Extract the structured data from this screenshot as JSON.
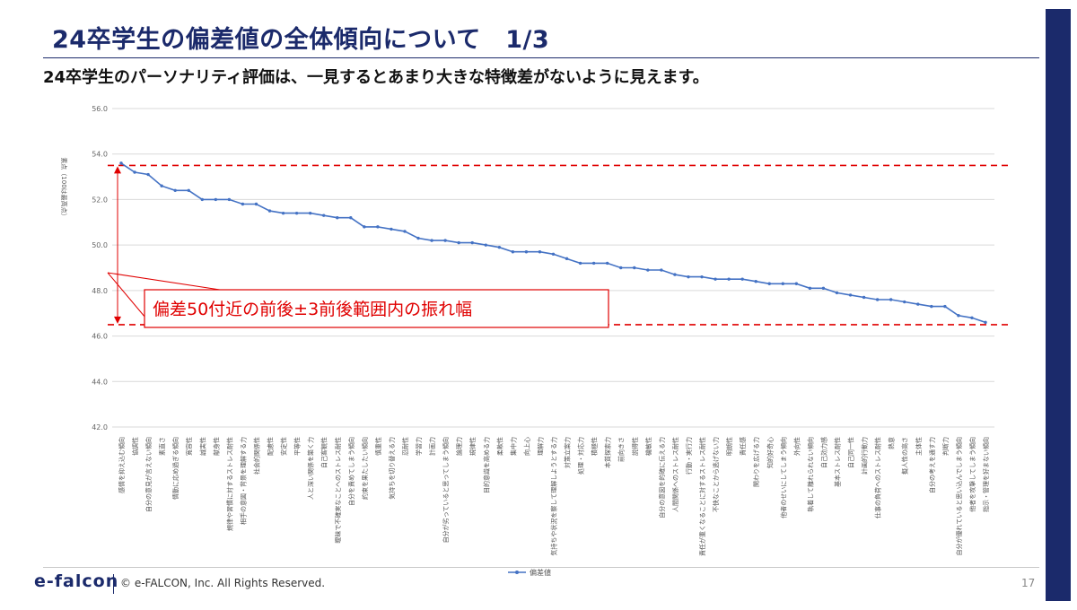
{
  "slide": {
    "title": "24卒学生の偏差値の全体傾向について　1/3",
    "subtitle": "24卒学生のパーソナリティ評価は、一見するとあまり大きな特徴差がないように見えます。",
    "footer": {
      "logo": "e-falcon",
      "copyright": "© e-FALCON, Inc. All Rights Reserved.",
      "page": "17"
    },
    "colors": {
      "navy": "#1b2a6b",
      "line": "#4472c4",
      "annotation": "#e00000"
    }
  },
  "chart_data": {
    "type": "line",
    "ylabel": "素点（100は最高点）",
    "ylim": [
      42,
      56
    ],
    "yticks": [
      "42.0",
      "44.0",
      "46.0",
      "48.0",
      "50.0",
      "52.0",
      "54.0",
      "56.0"
    ],
    "grid": true,
    "legend": "bottom",
    "categories": [
      "感情を抑え込む傾向",
      "協調性",
      "自分の意見が言えない傾向",
      "素直さ",
      "情動に応め過ぎる傾向",
      "寛容性",
      "誠実性",
      "献身性",
      "規律や習慣に対するストレス耐性",
      "相手の意図・背景を理解する力",
      "社会的関係性",
      "配慮性",
      "安定性",
      "平等性",
      "人と深い関係を築く力",
      "自己客観性",
      "曖昧で不確実なことへのストレス耐性",
      "自分を責めてしまう傾向",
      "約束を果たしたい傾向",
      "慎重性",
      "気持ちを切り替える力",
      "忍耐性",
      "学習力",
      "計画力",
      "自分が劣っていると思ってしまう傾向",
      "論理力",
      "規律性",
      "目的意識を高める力",
      "柔軟性",
      "集中力",
      "向上心",
      "理解力",
      "気持ちや状況を察して理解しようとする力",
      "対策立案力",
      "処理・対応力",
      "積極性",
      "本質探索力",
      "前向きさ",
      "説得性",
      "機敏性",
      "自分の意図を的確に伝える力",
      "人間関係へのストレス耐性",
      "行動・実行力",
      "責任が重くなることに対するストレス耐性",
      "不快なことから逃げない力",
      "明朗性",
      "責任感",
      "関わりを広げる力",
      "知的好奇心",
      "他者のせいにしてしまう傾向",
      "外向性",
      "執着して離れられない傾向",
      "自己効力感",
      "基本ストレス耐性",
      "自己同一性",
      "計画的行動力",
      "仕事の負荷へのストレス耐性",
      "熱意",
      "擬人性の高さ",
      "主体性",
      "自分の考えを通す力",
      "判断力",
      "自分が優れていると思い込んでしまう傾向",
      "他者を攻撃してしまう傾向",
      "指示・管理を好まない傾向"
    ],
    "series": [
      {
        "name": "偏差値",
        "color": "#4472c4",
        "values": [
          53.6,
          53.2,
          53.1,
          52.6,
          52.4,
          52.4,
          52.0,
          52.0,
          52.0,
          51.8,
          51.8,
          51.5,
          51.4,
          51.4,
          51.4,
          51.3,
          51.2,
          51.2,
          50.8,
          50.8,
          50.7,
          50.6,
          50.3,
          50.2,
          50.2,
          50.1,
          50.1,
          50.0,
          49.9,
          49.7,
          49.7,
          49.7,
          49.6,
          49.4,
          49.2,
          49.2,
          49.2,
          49.0,
          49.0,
          48.9,
          48.9,
          48.7,
          48.6,
          48.6,
          48.5,
          48.5,
          48.5,
          48.4,
          48.3,
          48.3,
          48.3,
          48.1,
          48.1,
          47.9,
          47.8,
          47.7,
          47.6,
          47.6,
          47.5,
          47.4,
          47.3,
          47.3,
          46.9,
          46.8,
          46.6
        ]
      }
    ],
    "annotations": {
      "upper_line": 53.5,
      "lower_line": 46.5,
      "callout": "偏差50付近の前後±3前後範囲内の振れ幅"
    }
  }
}
